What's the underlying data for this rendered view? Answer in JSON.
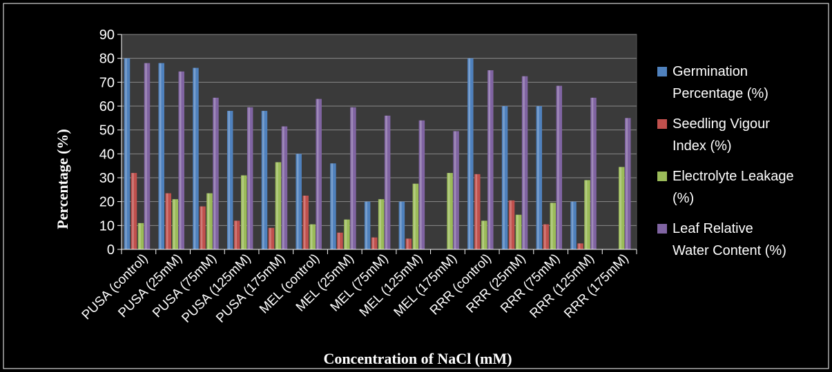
{
  "chart_data": {
    "type": "bar",
    "title": "",
    "xlabel": "Concentration of NaCl (mM)",
    "ylabel": "Percentage (%)",
    "ylim": [
      0,
      90
    ],
    "yticks": [
      0,
      10,
      20,
      30,
      40,
      50,
      60,
      70,
      80,
      90
    ],
    "grid": true,
    "legend_position": "right",
    "categories": [
      "PUSA (control)",
      "PUSA (25mM)",
      "PUSA (75mM)",
      "PUSA (125mM)",
      "PUSA (175mM)",
      "MEL (control)",
      "MEL (25mM)",
      "MEL (75mM)",
      "MEL (125mM)",
      "MEL (175mM)",
      "RRR (control)",
      "RRR (25mM)",
      "RRR (75mM)",
      "RRR (125mM)",
      "RRR (175mM)"
    ],
    "series": [
      {
        "name": "Germination Percentage (%)",
        "color": "#4f81bd",
        "values": [
          80,
          78,
          76,
          58,
          58,
          40,
          36,
          20,
          20,
          0,
          80,
          60,
          60,
          20,
          0
        ]
      },
      {
        "name": "Seedling Vigour Index (%)",
        "color": "#c0504d",
        "values": [
          32,
          23.5,
          18,
          12,
          9,
          22.5,
          7,
          5,
          4.5,
          0,
          31.5,
          20.5,
          10.5,
          2.5,
          0
        ]
      },
      {
        "name": "Electrolyte Leakage (%)",
        "color": "#9bbb59",
        "values": [
          11,
          21,
          23.5,
          31,
          36.5,
          10.5,
          12.5,
          21,
          27.5,
          32,
          12,
          14.5,
          19.5,
          29,
          34.5
        ]
      },
      {
        "name": "Leaf Relative Water Content (%)",
        "color": "#8064a2",
        "values": [
          78,
          74.5,
          63.5,
          59.5,
          51.5,
          63,
          59.5,
          56,
          54,
          49.5,
          75,
          72.5,
          68.5,
          63.5,
          55
        ]
      }
    ]
  },
  "legend": {
    "items": [
      {
        "line1": "Germination",
        "line2": "Percentage (%)"
      },
      {
        "line1": "Seedling Vigour",
        "line2": "Index (%)"
      },
      {
        "line1": "Electrolyte Leakage",
        "line2": "(%)"
      },
      {
        "line1": "Leaf Relative",
        "line2": "Water Content (%)"
      }
    ]
  }
}
